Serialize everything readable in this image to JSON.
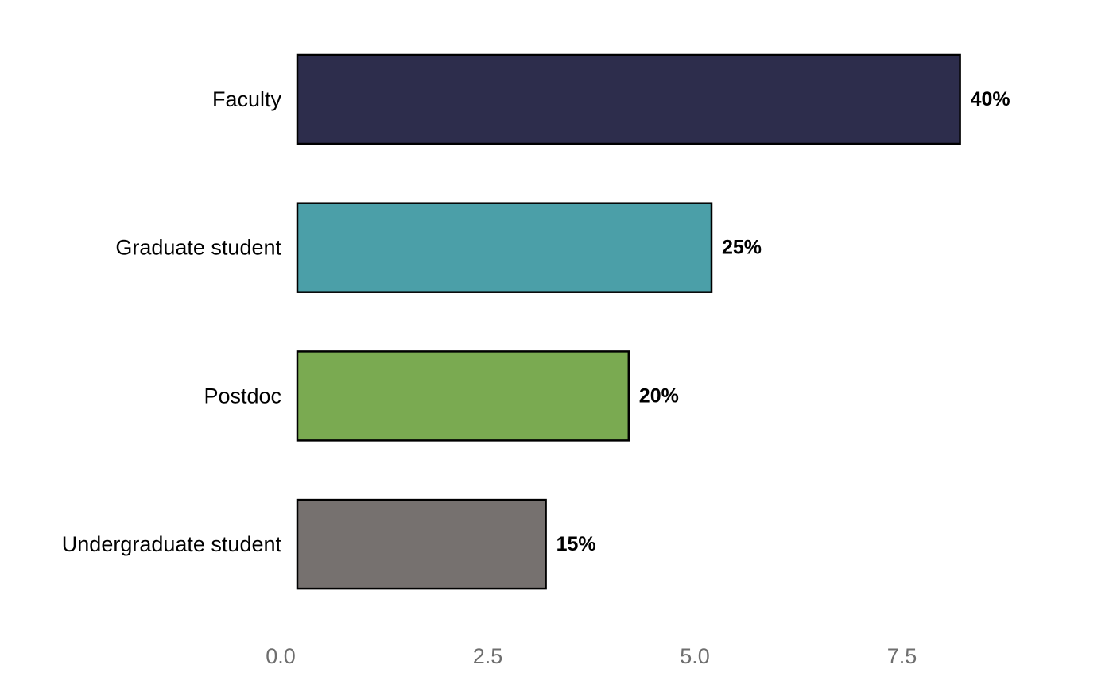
{
  "chart_data": {
    "type": "bar",
    "orientation": "horizontal",
    "title": "",
    "xlabel": "",
    "ylabel": "",
    "categories": [
      "Faculty",
      "Graduate student",
      "Postdoc",
      "Undergraduate student"
    ],
    "values": [
      8,
      5,
      4,
      3
    ],
    "data_labels": [
      "40%",
      "25%",
      "20%",
      "15%"
    ],
    "colors": [
      "#2d2d4c",
      "#4b9fa8",
      "#7aaa51",
      "#76716f"
    ],
    "x_ticks": [
      0,
      2.5,
      5,
      7.5
    ],
    "x_tick_labels": [
      "0.0",
      "2.5",
      "5.0",
      "7.5"
    ],
    "xlim": [
      -0.2,
      9.2
    ],
    "grid": false,
    "legend": "none"
  }
}
